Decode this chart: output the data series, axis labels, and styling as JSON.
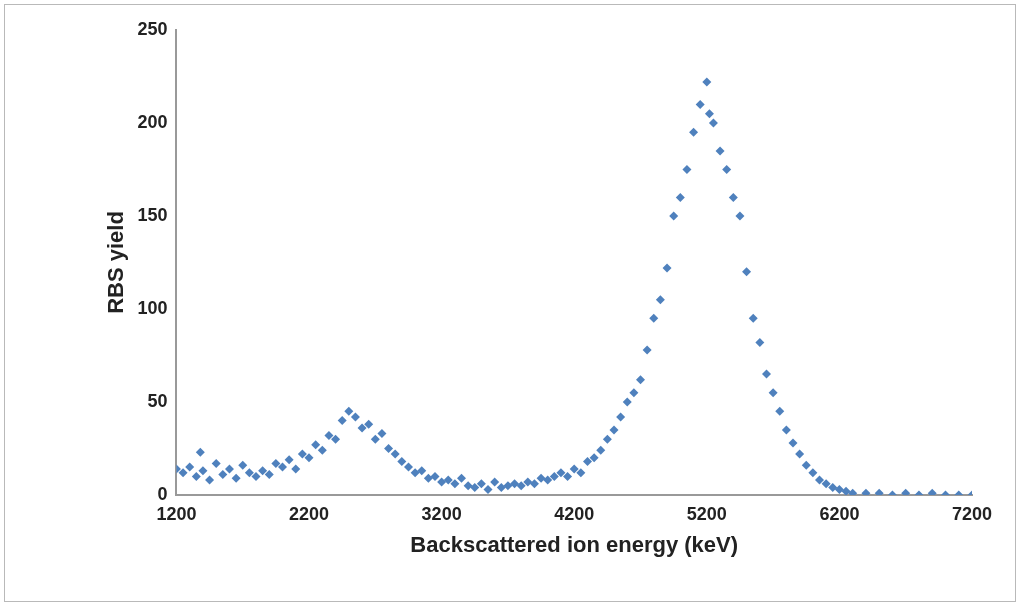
{
  "chart_data": {
    "type": "scatter",
    "xlabel": "Backscattered ion energy (keV)",
    "ylabel": "RBS yield",
    "marker": "diamond",
    "grid": false,
    "xlim": [
      1200,
      7200
    ],
    "xticks": [
      1200,
      2200,
      3200,
      4200,
      5200,
      6200,
      7200
    ],
    "ylim": [
      0,
      250
    ],
    "yticks": [
      0,
      50,
      100,
      150,
      200,
      250
    ],
    "series": [
      {
        "color": "#4f81bd",
        "x": [
          1200,
          1250,
          1300,
          1350,
          1380,
          1400,
          1450,
          1500,
          1550,
          1600,
          1650,
          1700,
          1750,
          1800,
          1850,
          1900,
          1950,
          2000,
          2050,
          2100,
          2150,
          2200,
          2250,
          2300,
          2350,
          2400,
          2450,
          2500,
          2550,
          2600,
          2650,
          2700,
          2750,
          2800,
          2850,
          2900,
          2950,
          3000,
          3050,
          3100,
          3150,
          3200,
          3250,
          3300,
          3350,
          3400,
          3450,
          3500,
          3550,
          3600,
          3650,
          3700,
          3750,
          3800,
          3850,
          3900,
          3950,
          4000,
          4050,
          4100,
          4150,
          4200,
          4250,
          4300,
          4350,
          4400,
          4450,
          4500,
          4550,
          4600,
          4650,
          4700,
          4750,
          4800,
          4850,
          4900,
          4950,
          5000,
          5050,
          5100,
          5150,
          5200,
          5220,
          5250,
          5300,
          5350,
          5400,
          5450,
          5500,
          5550,
          5600,
          5650,
          5700,
          5750,
          5800,
          5850,
          5900,
          5950,
          6000,
          6050,
          6100,
          6150,
          6200,
          6250,
          6300,
          6400,
          6500,
          6600,
          6700,
          6800,
          6900,
          7000,
          7100,
          7200
        ],
        "values": [
          14,
          12,
          15,
          10,
          23,
          13,
          8,
          17,
          11,
          14,
          9,
          16,
          12,
          10,
          13,
          11,
          17,
          15,
          19,
          14,
          22,
          20,
          27,
          24,
          32,
          30,
          40,
          45,
          42,
          36,
          38,
          30,
          33,
          25,
          22,
          18,
          15,
          12,
          13,
          9,
          10,
          7,
          8,
          6,
          9,
          5,
          4,
          6,
          3,
          7,
          4,
          5,
          6,
          5,
          7,
          6,
          9,
          8,
          10,
          12,
          10,
          14,
          12,
          18,
          20,
          24,
          30,
          35,
          42,
          50,
          55,
          62,
          78,
          95,
          105,
          122,
          150,
          160,
          175,
          195,
          210,
          222,
          205,
          200,
          185,
          175,
          160,
          150,
          120,
          95,
          82,
          65,
          55,
          45,
          35,
          28,
          22,
          16,
          12,
          8,
          6,
          4,
          3,
          2,
          1,
          1,
          1,
          0,
          1,
          0,
          1,
          0,
          0,
          0
        ]
      }
    ]
  }
}
